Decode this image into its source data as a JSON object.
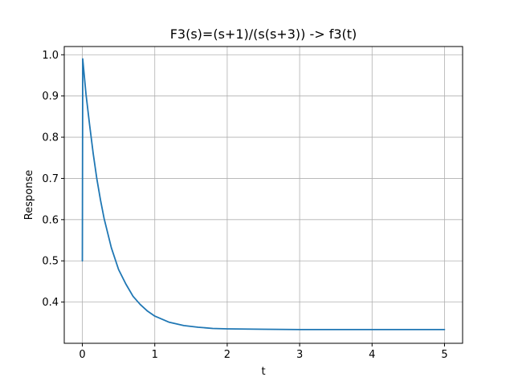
{
  "chart_data": {
    "type": "line",
    "title": "F3(s)=(s+1)/(s(s+3))  ->  f3(t)",
    "xlabel": "t",
    "ylabel": "Response",
    "xlim": [
      -0.25,
      5.25
    ],
    "ylim": [
      0.3,
      1.02
    ],
    "xticks": [
      0,
      1,
      2,
      3,
      4,
      5
    ],
    "xtick_labels": [
      "0",
      "1",
      "2",
      "3",
      "4",
      "5"
    ],
    "yticks": [
      0.4,
      0.5,
      0.6,
      0.7,
      0.8,
      0.9,
      1.0
    ],
    "ytick_labels": [
      "0.4",
      "0.5",
      "0.6",
      "0.7",
      "0.8",
      "0.9",
      "1.0"
    ],
    "grid": true,
    "series": [
      {
        "color": "#1f77b4",
        "x": [
          0,
          0.005,
          0.05,
          0.1,
          0.15,
          0.2,
          0.25,
          0.3,
          0.4,
          0.5,
          0.6,
          0.7,
          0.8,
          0.9,
          1.0,
          1.2,
          1.4,
          1.6,
          1.8,
          2.0,
          2.5,
          3.0,
          3.5,
          4.0,
          4.5,
          5.0
        ],
        "y": [
          0.5,
          0.99,
          0.905,
          0.83,
          0.76,
          0.699,
          0.648,
          0.603,
          0.532,
          0.479,
          0.444,
          0.414,
          0.394,
          0.378,
          0.366,
          0.351,
          0.343,
          0.339,
          0.336,
          0.335,
          0.334,
          0.3334,
          0.3333,
          0.3333,
          0.3333,
          0.3333
        ]
      }
    ]
  }
}
